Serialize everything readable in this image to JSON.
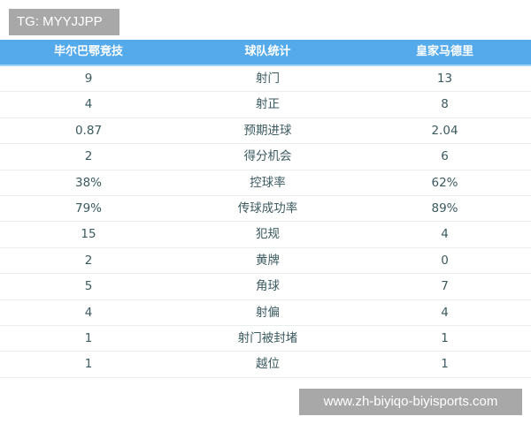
{
  "watermark_top": "TG: MYYJJPP",
  "watermark_bottom": "www.zh-biyiqo-biyisports.com",
  "header": {
    "left": "毕尔巴鄂竞技",
    "center": "球队统计",
    "right": "皇家马德里"
  },
  "colors": {
    "header_bg": "#55aaec",
    "text": "#3b5a60"
  },
  "rows": [
    {
      "left": "9",
      "stat": "射门",
      "right": "13"
    },
    {
      "left": "4",
      "stat": "射正",
      "right": "8"
    },
    {
      "left": "0.87",
      "stat": "预期进球",
      "right": "2.04"
    },
    {
      "left": "2",
      "stat": "得分机会",
      "right": "6"
    },
    {
      "left": "38%",
      "stat": "控球率",
      "right": "62%"
    },
    {
      "left": "79%",
      "stat": "传球成功率",
      "right": "89%"
    },
    {
      "left": "15",
      "stat": "犯规",
      "right": "4"
    },
    {
      "left": "2",
      "stat": "黄牌",
      "right": "0"
    },
    {
      "left": "5",
      "stat": "角球",
      "right": "7"
    },
    {
      "left": "4",
      "stat": "射偏",
      "right": "4"
    },
    {
      "left": "1",
      "stat": "射门被封堵",
      "right": "1"
    },
    {
      "left": "1",
      "stat": "越位",
      "right": "1"
    }
  ]
}
